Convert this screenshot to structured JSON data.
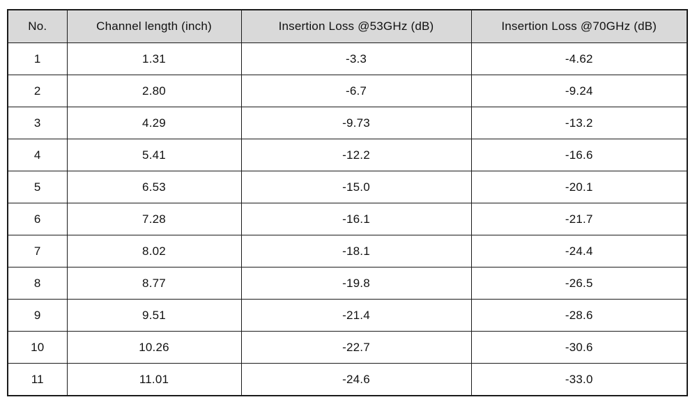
{
  "chart_data": {
    "type": "table",
    "title": "",
    "columns": [
      "No.",
      "Channel length (inch)",
      "Insertion Loss @53GHz (dB)",
      "Insertion Loss @70GHz (dB)"
    ],
    "rows": [
      [
        "1",
        "1.31",
        "-3.3",
        "-4.62"
      ],
      [
        "2",
        "2.80",
        "-6.7",
        "-9.24"
      ],
      [
        "3",
        "4.29",
        "-9.73",
        "-13.2"
      ],
      [
        "4",
        "5.41",
        "-12.2",
        "-16.6"
      ],
      [
        "5",
        "6.53",
        "-15.0",
        "-20.1"
      ],
      [
        "6",
        "7.28",
        "-16.1",
        "-21.7"
      ],
      [
        "7",
        "8.02",
        "-18.1",
        "-24.4"
      ],
      [
        "8",
        "8.77",
        "-19.8",
        "-26.5"
      ],
      [
        "9",
        "9.51",
        "-21.4",
        "-28.6"
      ],
      [
        "10",
        "10.26",
        "-22.7",
        "-30.6"
      ],
      [
        "11",
        "11.01",
        "-24.6",
        "-33.0"
      ]
    ]
  },
  "style": {
    "header_bg": "#d9d9d9",
    "border_color": "#1a1a1a",
    "text_color": "#111111",
    "page_bg": "#ffffff"
  }
}
